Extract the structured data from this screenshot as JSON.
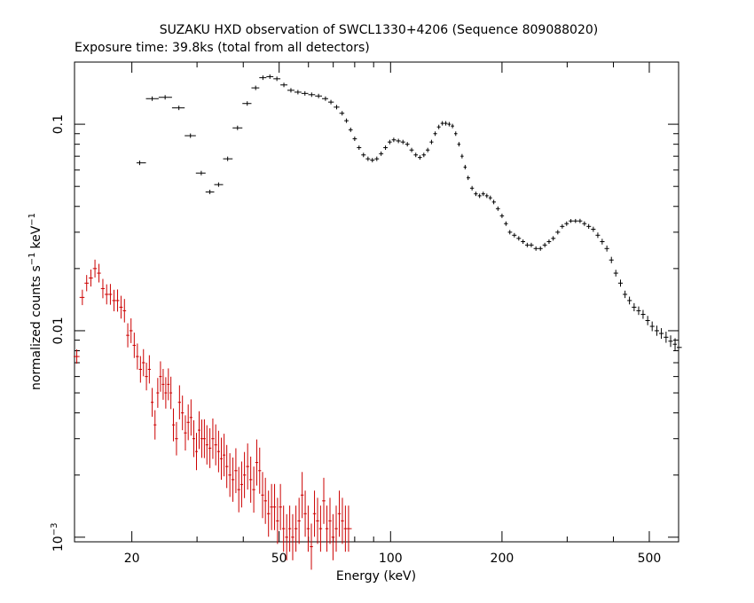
{
  "chart_data": {
    "type": "scatter",
    "title": "SUZAKU HXD observation of SWCL1330+4206 (Sequence 809088020)",
    "subtitle": "Exposure time: 39.8ks (total from all detectors)",
    "xlabel": "Energy (keV)",
    "ylabel_main": "normalized counts s",
    "ylabel_unit": "keV",
    "ylabel_exp": "−1",
    "x_scale": "log",
    "y_scale": "log",
    "xlim": [
      14,
      600
    ],
    "ylim": [
      0.00095,
      0.2
    ],
    "x_ticks": [
      {
        "value": 20,
        "label": "20"
      },
      {
        "value": 50,
        "label": "50"
      },
      {
        "value": 100,
        "label": "100"
      },
      {
        "value": 200,
        "label": "200"
      },
      {
        "value": 500,
        "label": "500"
      }
    ],
    "y_ticks": [
      {
        "value": 0.1,
        "label": "0.1"
      },
      {
        "value": 0.01,
        "label": "0.01"
      },
      {
        "value": 0.001,
        "label": "10",
        "exp": "−3"
      }
    ],
    "series": [
      {
        "color": "#000000",
        "points": [
          [
            21,
            0.065
          ],
          [
            22.7,
            0.133
          ],
          [
            24.6,
            0.135
          ],
          [
            26.8,
            0.12
          ],
          [
            28.8,
            0.088
          ],
          [
            30.8,
            0.058
          ],
          [
            32.5,
            0.047
          ],
          [
            34.3,
            0.051
          ],
          [
            36.3,
            0.068
          ],
          [
            38.6,
            0.096
          ],
          [
            41.0,
            0.126
          ],
          [
            43.2,
            0.15
          ],
          [
            45.2,
            0.168
          ],
          [
            47.2,
            0.17
          ],
          [
            49.3,
            0.166
          ],
          [
            51.5,
            0.155
          ],
          [
            53.8,
            0.146
          ],
          [
            56.2,
            0.143
          ],
          [
            58.7,
            0.141
          ],
          [
            61.2,
            0.139
          ],
          [
            63.9,
            0.137
          ],
          [
            66.7,
            0.133
          ],
          [
            69.0,
            0.128
          ],
          [
            71.5,
            0.121
          ],
          [
            74.0,
            0.113
          ],
          [
            76.0,
            0.104
          ],
          [
            78.0,
            0.094
          ],
          [
            80.0,
            0.085
          ],
          [
            82.2,
            0.077
          ],
          [
            84.5,
            0.071
          ],
          [
            86.9,
            0.068
          ],
          [
            89.3,
            0.067
          ],
          [
            91.8,
            0.068
          ],
          [
            94.3,
            0.072
          ],
          [
            96.9,
            0.077
          ],
          [
            99.5,
            0.082
          ],
          [
            102,
            0.084
          ],
          [
            105,
            0.083
          ],
          [
            108,
            0.082
          ],
          [
            111,
            0.08
          ],
          [
            114,
            0.075
          ],
          [
            117,
            0.071
          ],
          [
            120,
            0.069
          ],
          [
            123,
            0.071
          ],
          [
            126,
            0.075
          ],
          [
            129,
            0.082
          ],
          [
            132,
            0.09
          ],
          [
            135,
            0.097
          ],
          [
            138,
            0.101
          ],
          [
            141,
            0.101
          ],
          [
            144,
            0.1
          ],
          [
            147,
            0.098
          ],
          [
            150,
            0.09
          ],
          [
            153,
            0.08
          ],
          [
            156,
            0.07
          ],
          [
            159,
            0.062
          ],
          [
            162,
            0.055
          ],
          [
            166,
            0.049
          ],
          [
            170,
            0.046
          ],
          [
            174,
            0.045
          ],
          [
            178,
            0.046
          ],
          [
            182,
            0.045
          ],
          [
            186,
            0.044
          ],
          [
            190,
            0.042
          ],
          [
            195,
            0.039
          ],
          [
            200,
            0.036
          ],
          [
            205,
            0.033
          ],
          [
            210,
            0.03
          ],
          [
            216,
            0.029
          ],
          [
            222,
            0.028
          ],
          [
            228,
            0.027
          ],
          [
            234,
            0.026
          ],
          [
            240,
            0.026
          ],
          [
            247,
            0.025
          ],
          [
            254,
            0.025
          ],
          [
            261,
            0.026
          ],
          [
            268,
            0.027
          ],
          [
            275,
            0.028
          ],
          [
            283,
            0.03
          ],
          [
            291,
            0.032
          ],
          [
            299,
            0.033
          ],
          [
            307,
            0.034
          ],
          [
            316,
            0.034
          ],
          [
            325,
            0.034
          ],
          [
            334,
            0.033
          ],
          [
            343,
            0.032
          ],
          [
            353,
            0.031
          ],
          [
            363,
            0.029
          ],
          [
            373,
            0.027
          ],
          [
            384,
            0.025
          ],
          [
            395,
            0.022
          ],
          [
            406,
            0.019
          ],
          [
            418,
            0.017
          ],
          [
            430,
            0.015
          ],
          [
            442,
            0.014
          ],
          [
            455,
            0.013
          ],
          [
            468,
            0.0125
          ],
          [
            481,
            0.012
          ],
          [
            495,
            0.0112
          ],
          [
            509,
            0.0105
          ],
          [
            524,
            0.01
          ],
          [
            539,
            0.0097
          ],
          [
            555,
            0.0093
          ],
          [
            571,
            0.0089
          ],
          [
            587,
            0.0086
          ],
          [
            600,
            0.0083
          ]
        ]
      },
      {
        "color": "#cc0000",
        "points": [
          [
            14.2,
            0.0075
          ],
          [
            14.7,
            0.0145
          ],
          [
            15.1,
            0.017
          ],
          [
            15.5,
            0.018
          ],
          [
            15.9,
            0.02
          ],
          [
            16.3,
            0.019
          ],
          [
            16.7,
            0.016
          ],
          [
            17.1,
            0.015
          ],
          [
            17.5,
            0.015
          ],
          [
            17.9,
            0.014
          ],
          [
            18.3,
            0.014
          ],
          [
            18.7,
            0.013
          ],
          [
            19.1,
            0.0125
          ],
          [
            19.5,
            0.0095
          ],
          [
            19.9,
            0.01
          ],
          [
            20.3,
            0.0085
          ],
          [
            20.7,
            0.0075
          ],
          [
            21.1,
            0.0065
          ],
          [
            21.5,
            0.007
          ],
          [
            21.9,
            0.006
          ],
          [
            22.3,
            0.0065
          ],
          [
            22.7,
            0.0045
          ],
          [
            23.1,
            0.0035
          ],
          [
            23.5,
            0.005
          ],
          [
            23.9,
            0.006
          ],
          [
            24.3,
            0.0055
          ],
          [
            24.7,
            0.005
          ],
          [
            25.1,
            0.0055
          ],
          [
            25.5,
            0.005
          ],
          [
            25.9,
            0.0035
          ],
          [
            26.4,
            0.003
          ],
          [
            26.9,
            0.0045
          ],
          [
            27.4,
            0.004
          ],
          [
            27.9,
            0.0032
          ],
          [
            28.4,
            0.0036
          ],
          [
            28.9,
            0.0038
          ],
          [
            29.4,
            0.003
          ],
          [
            29.9,
            0.0026
          ],
          [
            30.4,
            0.0033
          ],
          [
            30.9,
            0.003
          ],
          [
            31.4,
            0.003
          ],
          [
            31.9,
            0.0028
          ],
          [
            32.5,
            0.0027
          ],
          [
            33.1,
            0.003
          ],
          [
            33.7,
            0.0028
          ],
          [
            34.3,
            0.0026
          ],
          [
            34.9,
            0.0024
          ],
          [
            35.5,
            0.0025
          ],
          [
            36.1,
            0.0022
          ],
          [
            36.8,
            0.002
          ],
          [
            37.5,
            0.0019
          ],
          [
            38.2,
            0.0021
          ],
          [
            38.9,
            0.0017
          ],
          [
            39.6,
            0.0018
          ],
          [
            40.3,
            0.002
          ],
          [
            41.1,
            0.0022
          ],
          [
            41.9,
            0.0019
          ],
          [
            42.7,
            0.0017
          ],
          [
            43.5,
            0.0023
          ],
          [
            44.3,
            0.0021
          ],
          [
            45.1,
            0.0016
          ],
          [
            45.9,
            0.0015
          ],
          [
            46.8,
            0.0013
          ],
          [
            47.7,
            0.0014
          ],
          [
            48.6,
            0.0014
          ],
          [
            49.5,
            0.0012
          ],
          [
            50.4,
            0.0014
          ],
          [
            51.4,
            0.0011
          ],
          [
            52.4,
            0.001
          ],
          [
            53.4,
            0.0011
          ],
          [
            54.4,
            0.001
          ],
          [
            55.5,
            0.0011
          ],
          [
            56.6,
            0.0012
          ],
          [
            57.7,
            0.0016
          ],
          [
            58.8,
            0.0013
          ],
          [
            59.9,
            0.0011
          ],
          [
            61.1,
            0.0009
          ],
          [
            62.3,
            0.0013
          ],
          [
            63.5,
            0.0012
          ],
          [
            64.7,
            0.0011
          ],
          [
            66.0,
            0.0015
          ],
          [
            67.3,
            0.0011
          ],
          [
            68.6,
            0.0012
          ],
          [
            69.9,
            0.001
          ],
          [
            71.3,
            0.0011
          ],
          [
            72.7,
            0.0013
          ],
          [
            74.1,
            0.0012
          ],
          [
            75.5,
            0.0011
          ],
          [
            77.0,
            0.0011
          ]
        ]
      }
    ]
  }
}
